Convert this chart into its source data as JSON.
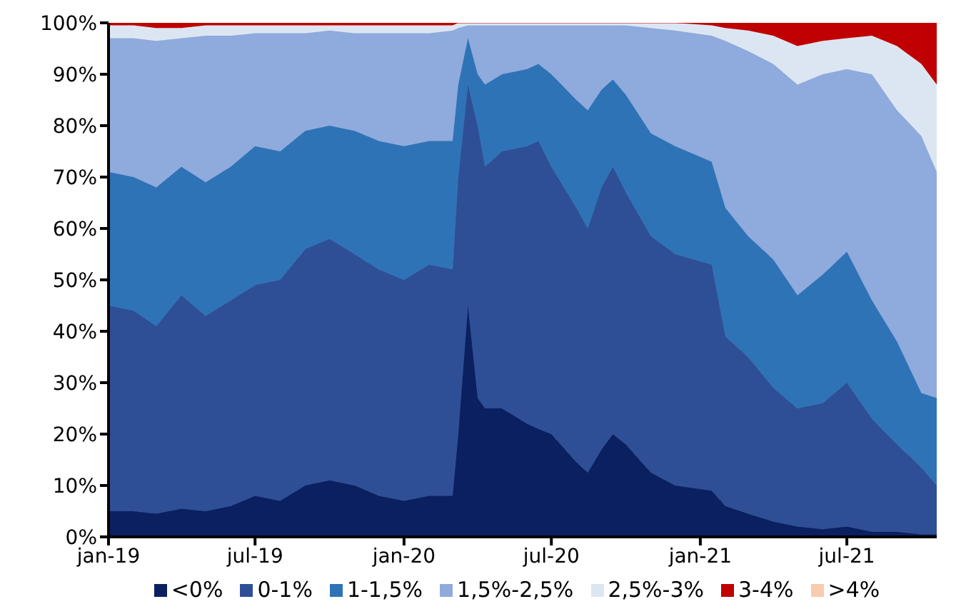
{
  "chart_data": {
    "type": "area",
    "stacked": true,
    "legend": "bottom",
    "grid": false,
    "x": [
      "2019-01-01",
      "2019-02-01",
      "2019-03-01",
      "2019-04-01",
      "2019-05-01",
      "2019-06-01",
      "2019-07-01",
      "2019-08-01",
      "2019-09-01",
      "2019-10-01",
      "2019-11-01",
      "2019-12-01",
      "2020-01-01",
      "2020-02-01",
      "2020-03-01",
      "2020-03-08",
      "2020-03-20",
      "2020-04-01",
      "2020-04-10",
      "2020-05-01",
      "2020-06-01",
      "2020-06-15",
      "2020-07-01",
      "2020-08-01",
      "2020-08-15",
      "2020-09-01",
      "2020-09-15",
      "2020-10-01",
      "2020-11-01",
      "2020-12-01",
      "2021-01-15",
      "2021-02-01",
      "2021-03-01",
      "2021-04-01",
      "2021-05-01",
      "2021-06-01",
      "2021-07-01",
      "2021-08-01",
      "2021-09-01",
      "2021-10-01",
      "2021-10-20"
    ],
    "series": [
      {
        "name": "<0%",
        "color": "#0a2060",
        "values": [
          5,
          5,
          4.5,
          5.5,
          5,
          6,
          8,
          7,
          10,
          11,
          10,
          8,
          7,
          8,
          8,
          20,
          45,
          27,
          25,
          25,
          22,
          21,
          20,
          14.5,
          12.5,
          17,
          20,
          18,
          12.5,
          10,
          9,
          6,
          4.5,
          3,
          2,
          1.5,
          2,
          1,
          1,
          0.5,
          0.5
        ]
      },
      {
        "name": "0-1%",
        "color": "#2e4f96",
        "values": [
          40,
          39,
          36.5,
          41.5,
          38,
          40,
          41,
          43,
          46,
          47,
          45,
          44,
          43,
          45,
          44,
          50,
          43,
          53,
          47,
          50,
          54,
          56,
          52,
          49.5,
          47.5,
          51,
          52,
          49,
          46,
          45,
          44,
          33,
          30.5,
          26,
          23,
          24.5,
          28,
          22,
          17,
          13,
          9.5
        ]
      },
      {
        "name": "1-1,5%",
        "color": "#2e73b6",
        "values": [
          26,
          26,
          27,
          25,
          26,
          26,
          27,
          25,
          23,
          22,
          24,
          25,
          26,
          24,
          25,
          18,
          9,
          10,
          16,
          15,
          15,
          15,
          18,
          21,
          23,
          19,
          17,
          19,
          20,
          21,
          20,
          25,
          23.5,
          25,
          22,
          25,
          25.5,
          23,
          20,
          14.5,
          17
        ]
      },
      {
        "name": "1,5%-2,5%",
        "color": "#8faadc",
        "values": [
          26,
          27,
          28.5,
          25,
          28.5,
          25.5,
          22,
          23,
          19,
          18.5,
          19,
          21,
          22,
          21,
          21.5,
          11,
          2.5,
          9.5,
          11.5,
          9.5,
          8.5,
          7.5,
          9.5,
          14.5,
          16.5,
          12.5,
          10.5,
          13.5,
          20.5,
          22.5,
          24.5,
          32.5,
          36,
          38,
          41,
          39,
          35.5,
          44,
          45,
          50,
          44
        ]
      },
      {
        "name": "2,5%-3%",
        "color": "#dce6f2",
        "values": [
          2.5,
          2.5,
          2.5,
          2,
          2,
          2,
          1.5,
          1.5,
          1.5,
          1,
          1.5,
          1.5,
          1.5,
          1.5,
          1,
          1,
          0.5,
          0.5,
          0.5,
          0.5,
          0.5,
          0.5,
          0.5,
          0.5,
          0.5,
          0.5,
          0.5,
          0.5,
          1,
          1.5,
          2,
          2.5,
          4,
          5.5,
          7.5,
          6.5,
          6,
          7.5,
          12.5,
          14,
          17
        ]
      },
      {
        "name": "3-4%",
        "color": "#c00000",
        "values": [
          0.5,
          0.5,
          1,
          1,
          0.5,
          0.5,
          0.5,
          0.5,
          0.5,
          0.5,
          0.5,
          0.5,
          0.5,
          0.5,
          0.5,
          0,
          0,
          0,
          0,
          0,
          0,
          0,
          0,
          0,
          0,
          0,
          0,
          0,
          0,
          0,
          0.5,
          1,
          1.5,
          2.5,
          4.5,
          3.5,
          3,
          2.5,
          4.5,
          8,
          12
        ]
      },
      {
        "name": ">4%",
        "color": "#f8cbad",
        "values": [
          null,
          null,
          null,
          null,
          null,
          null,
          null,
          null,
          null,
          null,
          null,
          null,
          null,
          null,
          null,
          null,
          null,
          null,
          null,
          null,
          null,
          null,
          null,
          null,
          null,
          null,
          null,
          null,
          null,
          null,
          null,
          null,
          null,
          null,
          null,
          null,
          null,
          null,
          null,
          null,
          null
        ]
      }
    ],
    "xlim": [
      "2019-01-01",
      "2021-10-20"
    ],
    "xticks": [
      {
        "value": "2019-01-01",
        "label": "jan-19"
      },
      {
        "value": "2019-07-01",
        "label": "jul-19"
      },
      {
        "value": "2020-01-01",
        "label": "jan-20"
      },
      {
        "value": "2020-07-01",
        "label": "jul-20"
      },
      {
        "value": "2021-01-01",
        "label": "jan-21"
      },
      {
        "value": "2021-07-01",
        "label": "jul-21"
      }
    ],
    "ylim": [
      0,
      100
    ],
    "yticks": [
      {
        "value": 0,
        "label": "0%"
      },
      {
        "value": 10,
        "label": "10%"
      },
      {
        "value": 20,
        "label": "20%"
      },
      {
        "value": 30,
        "label": "30%"
      },
      {
        "value": 40,
        "label": "40%"
      },
      {
        "value": 50,
        "label": "50%"
      },
      {
        "value": 60,
        "label": "60%"
      },
      {
        "value": 70,
        "label": "70%"
      },
      {
        "value": 80,
        "label": "80%"
      },
      {
        "value": 90,
        "label": "90%"
      },
      {
        "value": 100,
        "label": "100%"
      }
    ]
  }
}
